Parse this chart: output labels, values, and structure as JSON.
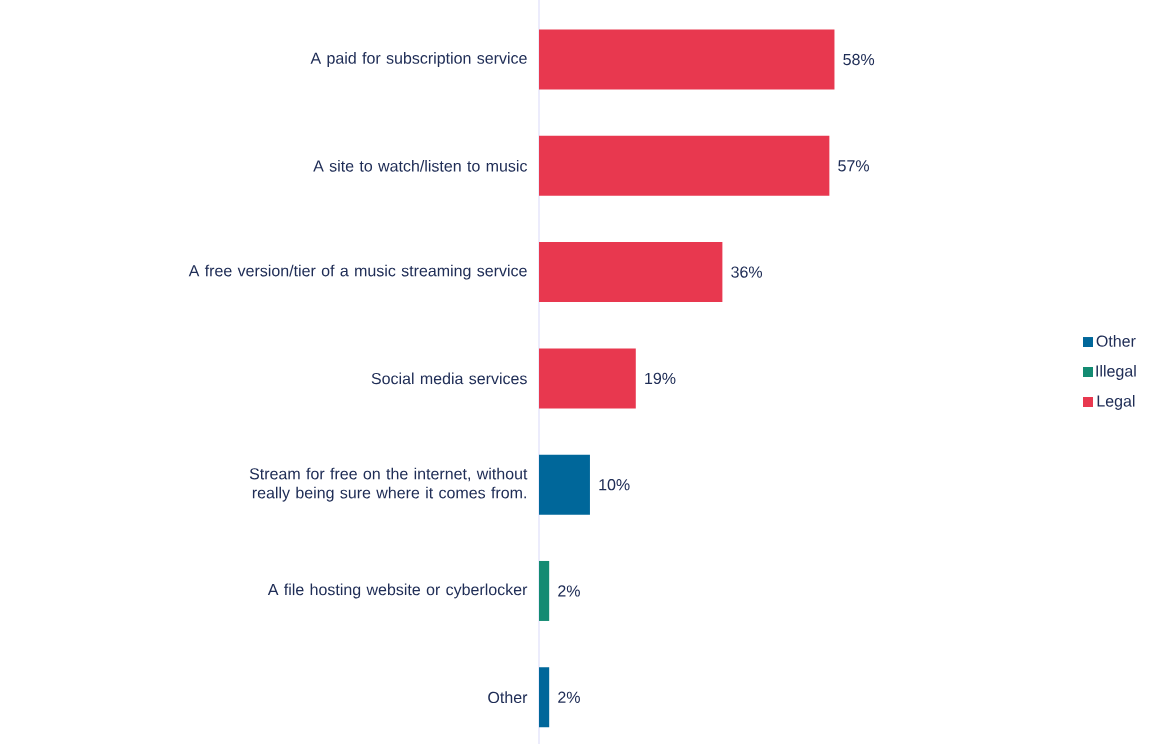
{
  "chart_data": {
    "type": "bar",
    "orientation": "horizontal",
    "categories": [
      "A paid for subscription service",
      "A site to watch/listen to music",
      "A free version/tier of a music streaming service",
      "Social media services",
      "Stream for free on the internet, without really being sure where it comes from.",
      "A file hosting website or cyberlocker",
      "Other"
    ],
    "series": [
      {
        "name": "Other",
        "color": "#00679a",
        "values": [
          null,
          null,
          null,
          null,
          10,
          null,
          2
        ],
        "value_labels": [
          null,
          null,
          null,
          null,
          "10%",
          null,
          "2%"
        ]
      },
      {
        "name": "Illegal",
        "color": "#138b72",
        "values": [
          null,
          null,
          null,
          null,
          null,
          2,
          null
        ],
        "value_labels": [
          null,
          null,
          null,
          null,
          null,
          "2%",
          null
        ]
      },
      {
        "name": "Legal",
        "color": "#e8384f",
        "values": [
          58,
          57,
          36,
          19,
          null,
          null,
          null
        ],
        "value_labels": [
          "58%",
          "57%",
          "36%",
          "19%",
          null,
          null,
          null
        ]
      }
    ],
    "legend": "right"
  }
}
